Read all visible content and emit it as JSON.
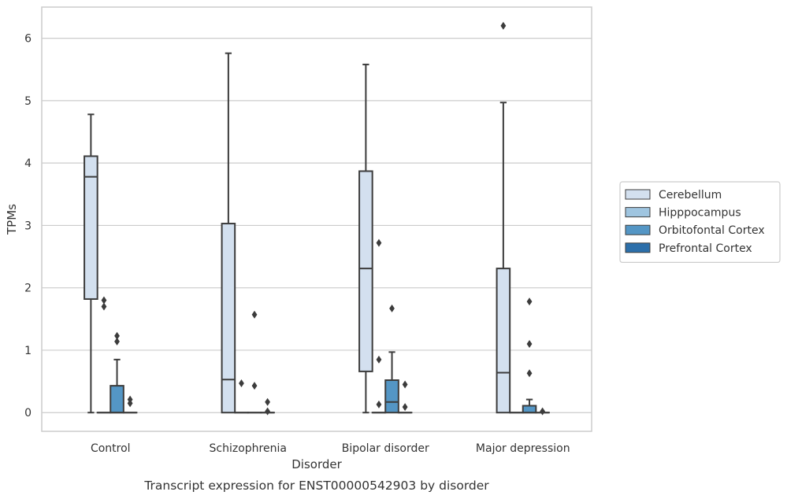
{
  "chart_data": {
    "type": "box",
    "title": "",
    "caption": "Transcript expression for ENST00000542903 by disorder",
    "xlabel": "Disorder",
    "ylabel": "TPMs",
    "ylim": [
      -0.3,
      6.5
    ],
    "yticks": [
      "0",
      "1",
      "2",
      "3",
      "4",
      "5",
      "6"
    ],
    "grid": "horizontal",
    "legend_position": "right",
    "categories": [
      "Control",
      "Schizophrenia",
      "Bipolar disorder",
      "Major depression"
    ],
    "series": [
      {
        "name": "Cerebellum",
        "color": "#d3e0ef",
        "boxes": [
          {
            "q1": 1.82,
            "median": 3.78,
            "q3": 4.11,
            "whisker_low": 0.0,
            "whisker_high": 4.78,
            "outliers": []
          },
          {
            "q1": 0.0,
            "median": 0.53,
            "q3": 3.03,
            "whisker_low": 0.0,
            "whisker_high": 5.76,
            "outliers": []
          },
          {
            "q1": 0.66,
            "median": 2.31,
            "q3": 3.87,
            "whisker_low": 0.0,
            "whisker_high": 5.58,
            "outliers": []
          },
          {
            "q1": 0.0,
            "median": 0.64,
            "q3": 2.31,
            "whisker_low": 0.0,
            "whisker_high": 4.97,
            "outliers": [
              6.2
            ]
          }
        ]
      },
      {
        "name": "Hipppocampus",
        "color": "#9fc5e0",
        "boxes": [
          {
            "q1": 0.0,
            "median": 0.0,
            "q3": 0.0,
            "whisker_low": 0.0,
            "whisker_high": 0.0,
            "outliers": [
              1.8,
              1.7
            ]
          },
          {
            "q1": 0.0,
            "median": 0.0,
            "q3": 0.0,
            "whisker_low": 0.0,
            "whisker_high": 0.0,
            "outliers": [
              0.47
            ]
          },
          {
            "q1": 0.0,
            "median": 0.0,
            "q3": 0.0,
            "whisker_low": 0.0,
            "whisker_high": 0.0,
            "outliers": [
              2.72,
              0.85,
              0.13
            ]
          },
          {
            "q1": 0.0,
            "median": 0.0,
            "q3": 0.0,
            "whisker_low": 0.0,
            "whisker_high": 0.0,
            "outliers": []
          }
        ]
      },
      {
        "name": "Orbitofontal Cortex",
        "color": "#5496c5",
        "boxes": [
          {
            "q1": 0.0,
            "median": 0.0,
            "q3": 0.43,
            "whisker_low": 0.0,
            "whisker_high": 0.85,
            "outliers": [
              1.23,
              1.14
            ]
          },
          {
            "q1": 0.0,
            "median": 0.0,
            "q3": 0.0,
            "whisker_low": 0.0,
            "whisker_high": 0.0,
            "outliers": [
              1.57,
              0.43
            ]
          },
          {
            "q1": 0.0,
            "median": 0.17,
            "q3": 0.52,
            "whisker_low": 0.0,
            "whisker_high": 0.97,
            "outliers": [
              1.67
            ]
          },
          {
            "q1": 0.0,
            "median": 0.0,
            "q3": 0.11,
            "whisker_low": 0.0,
            "whisker_high": 0.21,
            "outliers": [
              1.78,
              1.1,
              0.63
            ]
          }
        ]
      },
      {
        "name": "Prefrontal Cortex",
        "color": "#2c6faa",
        "boxes": [
          {
            "q1": 0.0,
            "median": 0.0,
            "q3": 0.0,
            "whisker_low": 0.0,
            "whisker_high": 0.0,
            "outliers": [
              0.21,
              0.15
            ]
          },
          {
            "q1": 0.0,
            "median": 0.0,
            "q3": 0.0,
            "whisker_low": 0.0,
            "whisker_high": 0.0,
            "outliers": [
              0.17,
              0.02
            ]
          },
          {
            "q1": 0.0,
            "median": 0.0,
            "q3": 0.0,
            "whisker_low": 0.0,
            "whisker_high": 0.0,
            "outliers": [
              0.45,
              0.09
            ]
          },
          {
            "q1": 0.0,
            "median": 0.0,
            "q3": 0.0,
            "whisker_low": 0.0,
            "whisker_high": 0.0,
            "outliers": [
              0.02
            ]
          }
        ]
      }
    ]
  }
}
